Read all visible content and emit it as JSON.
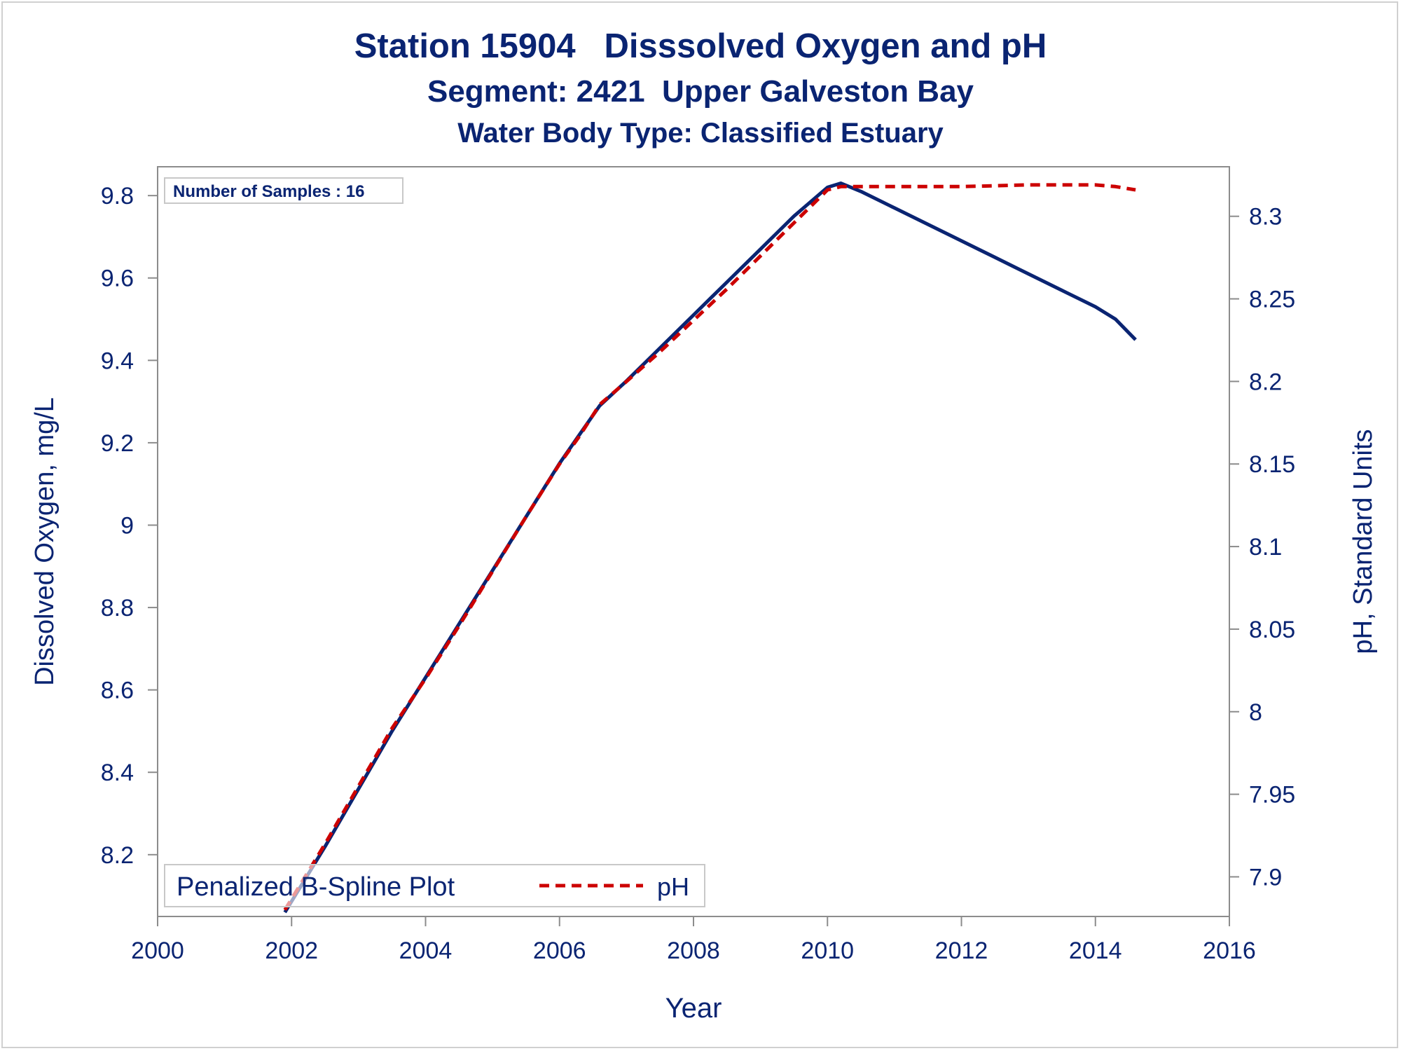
{
  "titles": {
    "line1": "Station 15904   Disssolved Oxygen and pH",
    "line2": "Segment: 2421  Upper Galveston Bay",
    "line3": "Water Body Type: Classified Estuary"
  },
  "inset": {
    "samples_label": "Number of Samples : 16"
  },
  "legend": {
    "title": "Penalized B-Spline Plot",
    "entries": [
      {
        "label": "pH"
      }
    ]
  },
  "colors": {
    "text": "#0a2472",
    "do_line": "#0a2472",
    "ph_line": "#cc0000",
    "axis": "#8c8c8c"
  },
  "chart_data": {
    "type": "line",
    "xlabel": "Year",
    "ylabel_left": "Dissolved Oxygen, mg/L",
    "ylabel_right": "pH, Standard Units",
    "xlim": [
      2000,
      2016
    ],
    "ylim_left": [
      8.05,
      9.87
    ],
    "ylim_right": [
      7.876,
      8.33
    ],
    "x_ticks": [
      2000,
      2002,
      2004,
      2006,
      2008,
      2010,
      2012,
      2014,
      2016
    ],
    "y_ticks_left": [
      8.2,
      8.4,
      8.6,
      8.8,
      9,
      9.2,
      9.4,
      9.6,
      9.8
    ],
    "y_ticks_right": [
      7.9,
      7.95,
      8,
      8.05,
      8.1,
      8.15,
      8.2,
      8.25,
      8.3
    ],
    "grid": false,
    "legend_position": "bottom-left",
    "series": [
      {
        "axis": "left",
        "style": "solid",
        "x": [
          2001.9,
          2002.5,
          2003,
          2003.5,
          2004,
          2004.5,
          2005,
          2005.5,
          2006,
          2006.3,
          2006.6,
          2007,
          2007.5,
          2008,
          2008.5,
          2009,
          2009.5,
          2010,
          2010.2,
          2010.5,
          2011,
          2011.5,
          2012,
          2012.5,
          2013,
          2013.5,
          2014,
          2014.3,
          2014.6
        ],
        "y": [
          8.06,
          8.22,
          8.36,
          8.5,
          8.63,
          8.76,
          8.89,
          9.02,
          9.15,
          9.22,
          9.29,
          9.35,
          9.43,
          9.51,
          9.59,
          9.67,
          9.75,
          9.82,
          9.83,
          9.81,
          9.77,
          9.73,
          9.69,
          9.65,
          9.61,
          9.57,
          9.53,
          9.5,
          9.45
        ]
      },
      {
        "name": "pH",
        "axis": "right",
        "style": "dashed",
        "x": [
          2001.9,
          2002.5,
          2003,
          2003.5,
          2004,
          2004.5,
          2005,
          2005.5,
          2006,
          2006.3,
          2006.6,
          2007,
          2007.5,
          2008,
          2008.5,
          2009,
          2009.5,
          2010,
          2010.2,
          2011,
          2012,
          2013,
          2014,
          2014.3,
          2014.6
        ],
        "y": [
          7.88,
          7.92,
          7.955,
          7.99,
          8.02,
          8.052,
          8.085,
          8.118,
          8.15,
          8.167,
          8.186,
          8.2,
          8.218,
          8.237,
          8.256,
          8.276,
          8.296,
          8.316,
          8.318,
          8.318,
          8.318,
          8.319,
          8.319,
          8.318,
          8.316
        ]
      }
    ]
  }
}
